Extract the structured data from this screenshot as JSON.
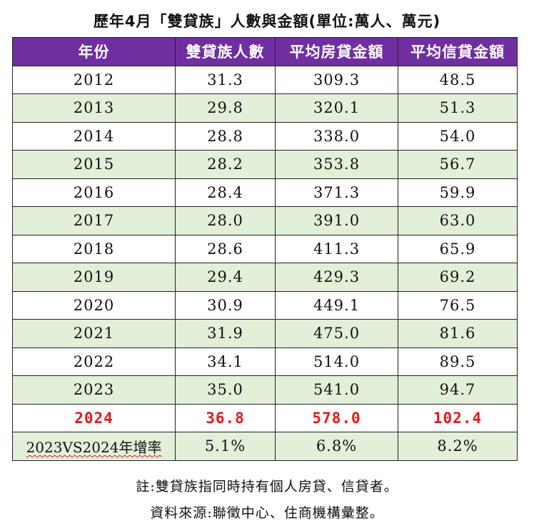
{
  "title": "歷年4月「雙貸族」人數與金額(單位:萬人、萬元)",
  "headers": [
    "年份",
    "雙貸族人數",
    "平均房貸金額",
    "平均信貸金額"
  ],
  "rows": [
    {
      "year": "2012",
      "people": "31.3",
      "mortgage": "309.3",
      "credit": "48.5"
    },
    {
      "year": "2013",
      "people": "29.8",
      "mortgage": "320.1",
      "credit": "51.3"
    },
    {
      "year": "2014",
      "people": "28.8",
      "mortgage": "338.0",
      "credit": "54.0"
    },
    {
      "year": "2015",
      "people": "28.2",
      "mortgage": "353.8",
      "credit": "56.7"
    },
    {
      "year": "2016",
      "people": "28.4",
      "mortgage": "371.3",
      "credit": "59.9"
    },
    {
      "year": "2017",
      "people": "28.0",
      "mortgage": "391.0",
      "credit": "63.0"
    },
    {
      "year": "2018",
      "people": "28.6",
      "mortgage": "411.3",
      "credit": "65.9"
    },
    {
      "year": "2019",
      "people": "29.4",
      "mortgage": "429.3",
      "credit": "69.2"
    },
    {
      "year": "2020",
      "people": "30.9",
      "mortgage": "449.1",
      "credit": "76.5"
    },
    {
      "year": "2021",
      "people": "31.9",
      "mortgage": "475.0",
      "credit": "81.6"
    },
    {
      "year": "2022",
      "people": "34.1",
      "mortgage": "514.0",
      "credit": "89.5"
    },
    {
      "year": "2023",
      "people": "35.0",
      "mortgage": "541.0",
      "credit": "94.7"
    }
  ],
  "highlight_row": {
    "year": "2024",
    "people": "36.8",
    "mortgage": "578.0",
    "credit": "102.4"
  },
  "growth_row": {
    "label": "2023VS2024年增率",
    "people": "5.1%",
    "mortgage": "6.8%",
    "credit": "8.2%"
  },
  "notes": [
    "註:雙貸族指同時持有個人房貸、信貸者。",
    "資料來源:聯徵中心、住商機構彙整。"
  ],
  "colors": {
    "header_bg": "#6f2fa0",
    "alt_row_bg": "#e2efd9",
    "highlight_text": "#e01b1b"
  }
}
